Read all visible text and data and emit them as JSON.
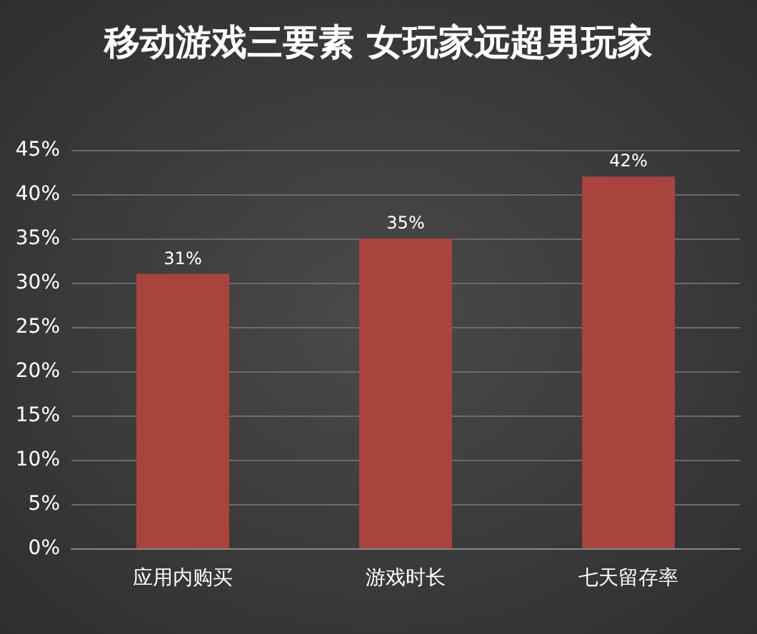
{
  "chart_data": {
    "type": "bar",
    "title": "移动游戏三要素 女玩家远超男玩家",
    "categories": [
      "应用内购买",
      "游戏时长",
      "七天留存率"
    ],
    "values": [
      31,
      35,
      42
    ],
    "color": "#a8443d",
    "value_labels": [
      "31%",
      "35%",
      "42%"
    ],
    "ylim": [
      0,
      45
    ],
    "yticks": [
      {
        "value": 0,
        "label": "0%"
      },
      {
        "value": 5,
        "label": "5%"
      },
      {
        "value": 10,
        "label": "10%"
      },
      {
        "value": 15,
        "label": "15%"
      },
      {
        "value": 20,
        "label": "20%"
      },
      {
        "value": 25,
        "label": "25%"
      },
      {
        "value": 30,
        "label": "30%"
      },
      {
        "value": 35,
        "label": "35%"
      },
      {
        "value": 40,
        "label": "40%"
      },
      {
        "value": 45,
        "label": "45%"
      }
    ],
    "grid": "y"
  }
}
